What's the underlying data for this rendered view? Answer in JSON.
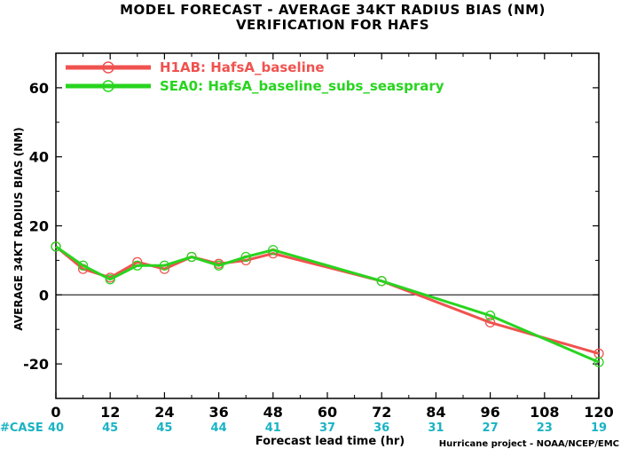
{
  "chart_data": {
    "type": "line",
    "title": "MODEL FORECAST - AVERAGE 34KT RADIUS BIAS (NM)",
    "subtitle": "VERIFICATION FOR HAFS",
    "xlabel": "Forecast lead time (hr)",
    "ylabel": "AVERAGE 34KT RADIUS BIAS (NM)",
    "xlim": [
      0,
      120
    ],
    "ylim": [
      -30,
      70
    ],
    "x_ticks": [
      0,
      12,
      24,
      36,
      48,
      60,
      72,
      84,
      96,
      108,
      120
    ],
    "y_ticks": [
      -20,
      0,
      20,
      40,
      60
    ],
    "zero_line": true,
    "legend_position": "top-left",
    "series": [
      {
        "name": "H1AB: HafsA_baseline",
        "color": "#f0524f",
        "x": [
          0,
          6,
          12,
          18,
          24,
          30,
          36,
          42,
          48,
          72,
          96,
          120
        ],
        "y": [
          14,
          7.5,
          5,
          9.5,
          7.5,
          11,
          9,
          10,
          12,
          4,
          -8,
          -17
        ]
      },
      {
        "name": "SEA0: HafsA_baseline_subs_seasprary",
        "color": "#28d41f",
        "x": [
          0,
          6,
          12,
          18,
          24,
          30,
          36,
          42,
          48,
          72,
          96,
          120
        ],
        "y": [
          14,
          8.5,
          4.5,
          8.5,
          8.5,
          11,
          8.5,
          11,
          13,
          4,
          -6,
          -19.5
        ]
      }
    ],
    "case_counts": {
      "label": "#CASE",
      "x": [
        0,
        12,
        24,
        36,
        48,
        60,
        72,
        84,
        96,
        108,
        120
      ],
      "values": [
        "40",
        "45",
        "45",
        "44",
        "41",
        "37",
        "36",
        "31",
        "27",
        "23",
        "19"
      ]
    },
    "credit": "Hurricane project - NOAA/NCEP/EMC"
  }
}
